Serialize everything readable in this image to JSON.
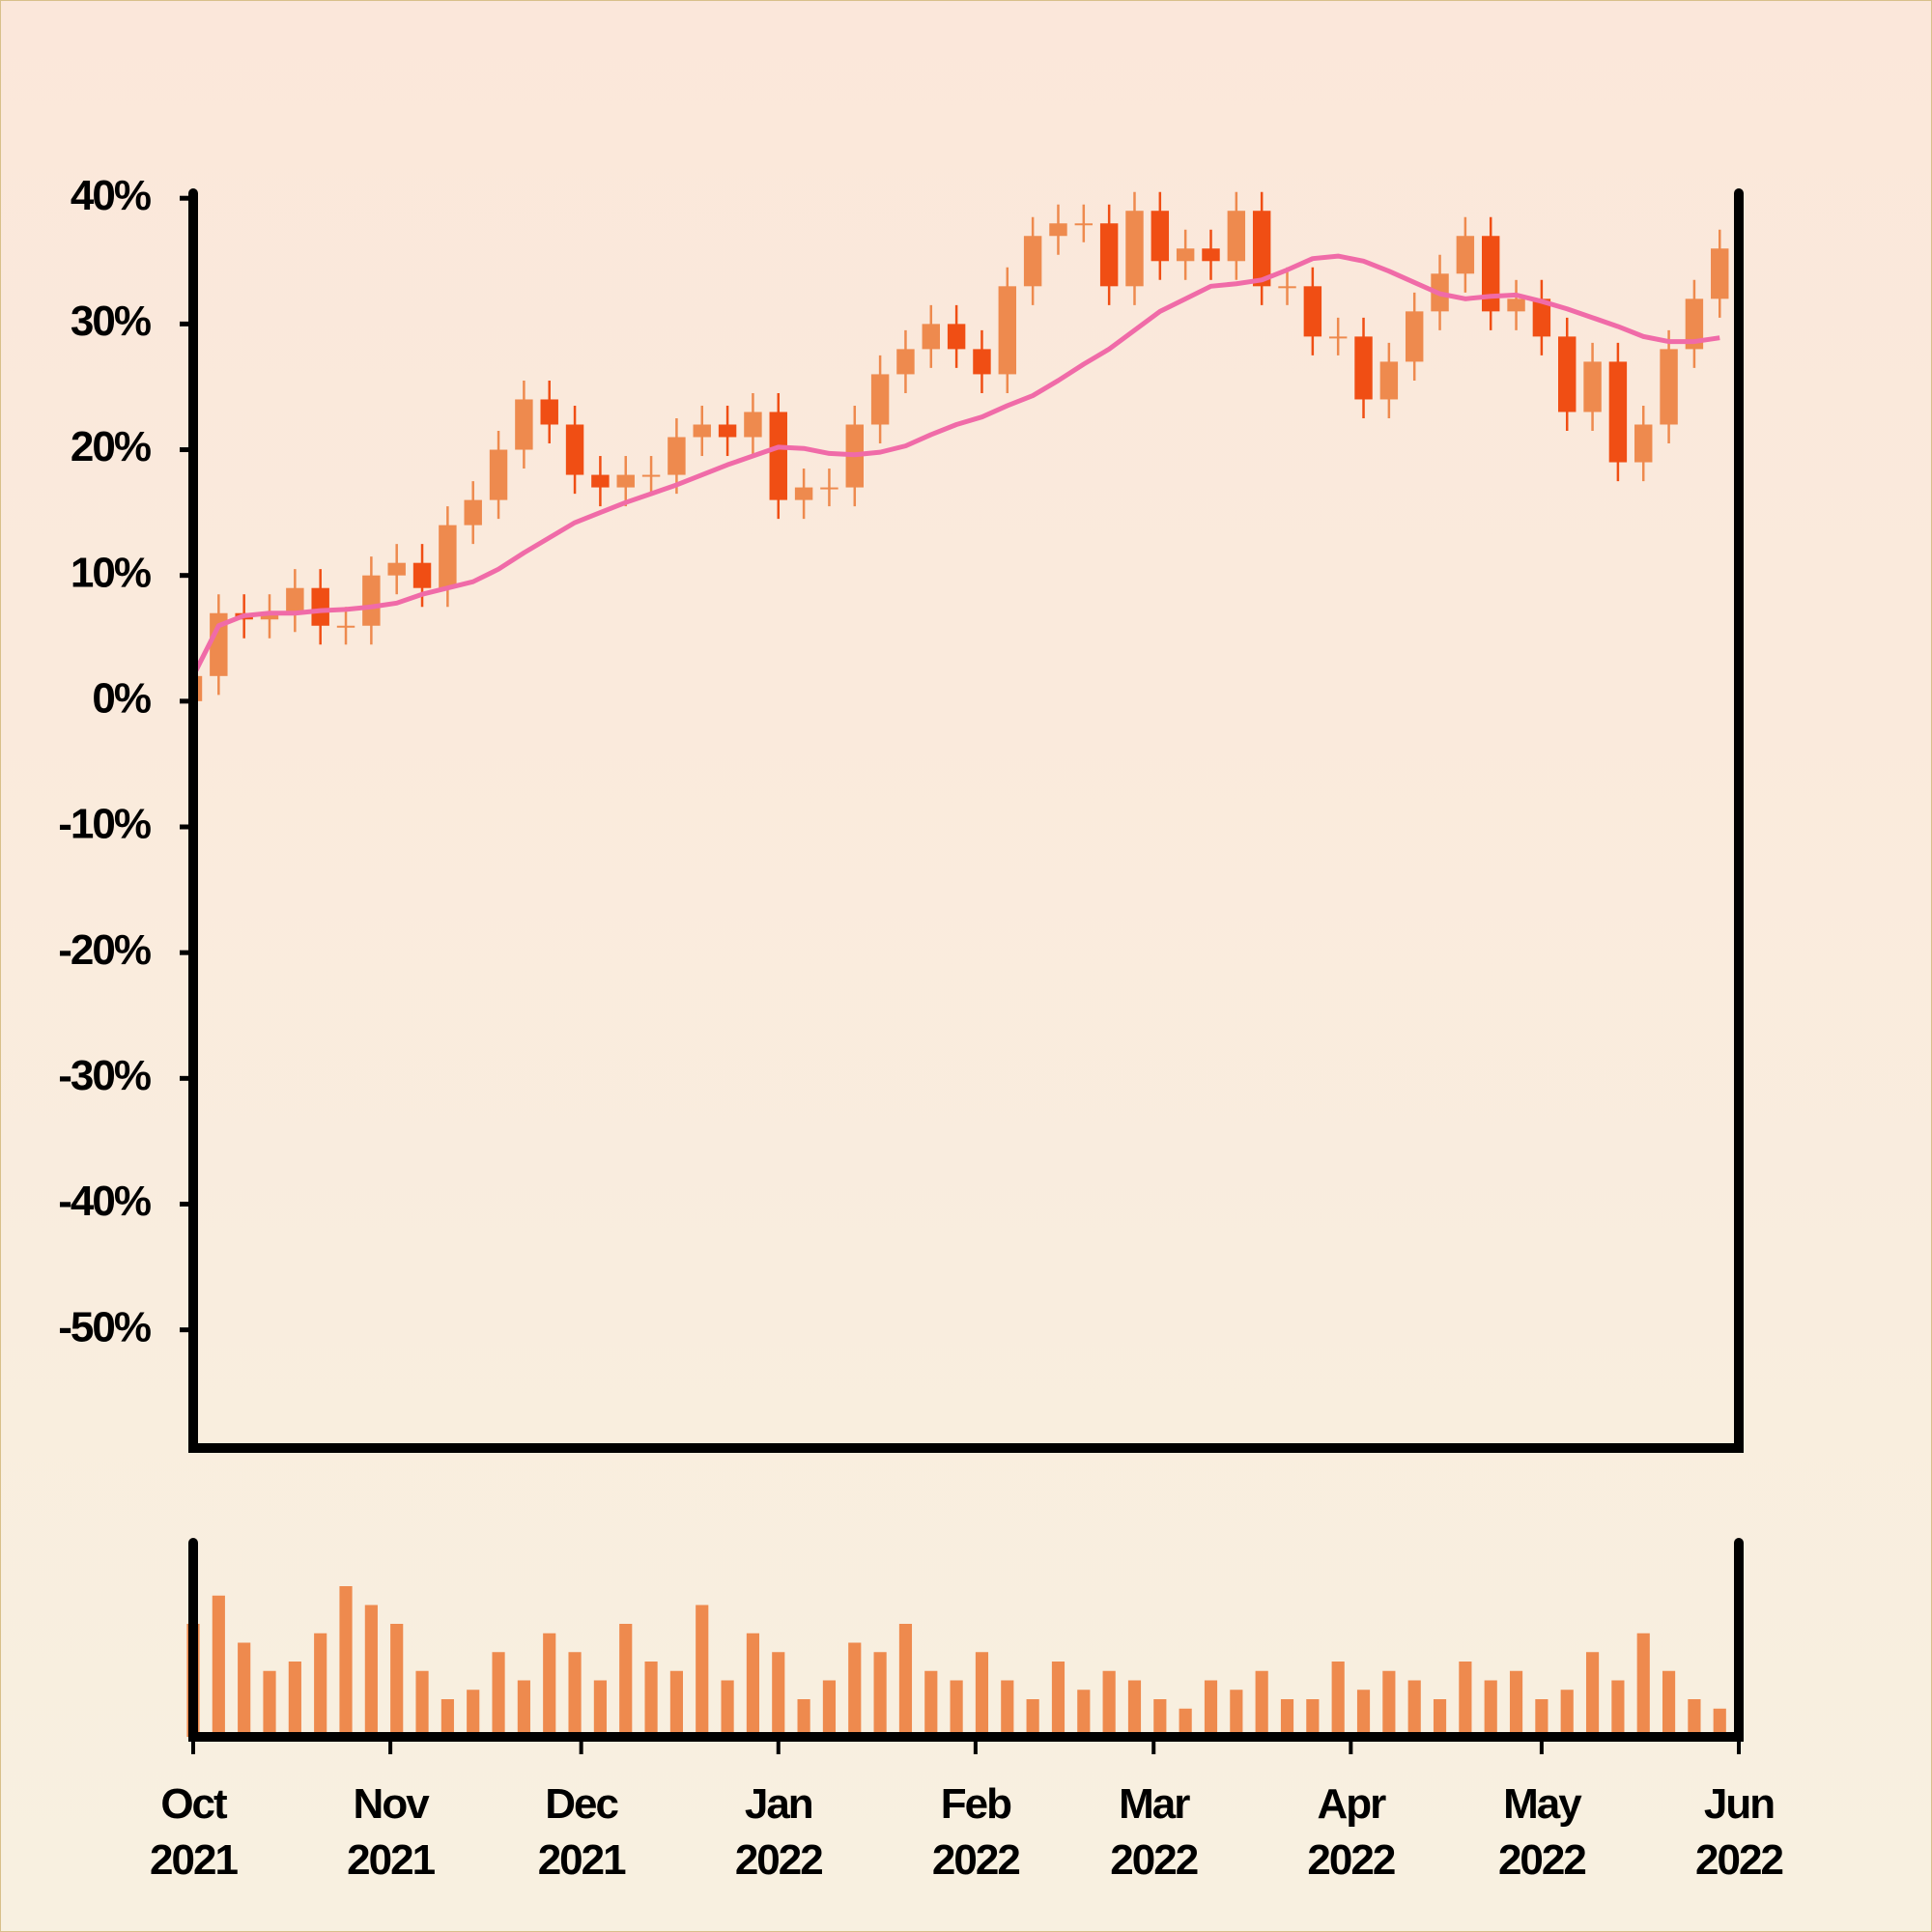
{
  "chart_data": {
    "type": "candlestick",
    "x": [
      0,
      4,
      8,
      12,
      16,
      20,
      24,
      28,
      32,
      36,
      40,
      44,
      48,
      52,
      56,
      60,
      64,
      68,
      72,
      76,
      80,
      84,
      88,
      92,
      96,
      100,
      104,
      108,
      112,
      116,
      120,
      124,
      128,
      132,
      136,
      140,
      144,
      148,
      152,
      156,
      160,
      164,
      168,
      172,
      176,
      180,
      184,
      188,
      192,
      196,
      200,
      204,
      208,
      212,
      216,
      220,
      224,
      228,
      232,
      236,
      240
    ],
    "open": [
      0,
      2,
      7,
      6.5,
      7,
      9,
      6,
      6,
      10,
      11,
      9,
      14,
      16,
      20,
      24,
      22,
      18,
      17,
      18,
      18,
      21,
      22,
      21,
      23,
      16,
      17,
      17,
      22,
      26,
      28,
      30,
      28,
      26,
      33,
      37,
      38,
      38,
      33,
      39,
      35,
      36,
      35,
      39,
      33,
      33,
      29,
      29,
      24,
      27,
      31,
      34,
      37,
      31,
      32,
      29,
      23,
      27,
      19,
      22,
      28,
      32
    ],
    "high": [
      3.5,
      8.5,
      8.5,
      8.5,
      10.5,
      10.5,
      7.5,
      11.5,
      12.5,
      12.5,
      15.5,
      17.5,
      21.5,
      25.5,
      25.5,
      23.5,
      19.5,
      19.5,
      19.5,
      22.5,
      23.5,
      23.5,
      24.5,
      24.5,
      18.5,
      18.5,
      23.5,
      27.5,
      29.5,
      31.5,
      31.5,
      29.5,
      34.5,
      38.5,
      39.5,
      39.5,
      39.5,
      40.5,
      40.5,
      37.5,
      37.5,
      40.5,
      40.5,
      34.5,
      34.5,
      30.5,
      30.5,
      28.5,
      32.5,
      35.5,
      38.5,
      38.5,
      33.5,
      33.5,
      30.5,
      28.5,
      28.5,
      23.5,
      29.5,
      33.5,
      37.5
    ],
    "low": [
      -1.5,
      0.5,
      5,
      5,
      5.5,
      4.5,
      4.5,
      4.5,
      8.5,
      7.5,
      7.5,
      12.5,
      14.5,
      18.5,
      20.5,
      16.5,
      15.5,
      15.5,
      16.5,
      16.5,
      19.5,
      19.5,
      19.5,
      14.5,
      14.5,
      15.5,
      15.5,
      20.5,
      24.5,
      26.5,
      26.5,
      24.5,
      24.5,
      31.5,
      35.5,
      36.5,
      31.5,
      31.5,
      33.5,
      33.5,
      33.5,
      33.5,
      31.5,
      31.5,
      27.5,
      27.5,
      22.5,
      22.5,
      25.5,
      29.5,
      32.5,
      29.5,
      29.5,
      27.5,
      21.5,
      21.5,
      17.5,
      17.5,
      20.5,
      26.5,
      30.5
    ],
    "close": [
      2,
      7,
      6.5,
      7,
      9,
      6,
      6,
      10,
      11,
      9,
      14,
      16,
      20,
      24,
      22,
      18,
      17,
      18,
      18,
      21,
      22,
      21,
      23,
      16,
      17,
      17,
      22,
      26,
      28,
      30,
      28,
      26,
      33,
      37,
      38,
      38,
      33,
      39,
      35,
      36,
      35,
      39,
      33,
      33,
      29,
      29,
      24,
      27,
      31,
      34,
      37,
      31,
      32,
      29,
      23,
      27,
      19,
      22,
      28,
      32,
      36
    ],
    "up_color": "#ee8a4e",
    "down_color": "#f04e14",
    "moving_average": {
      "color": "#f06ba8",
      "values": [
        2,
        6,
        6.8,
        7,
        7,
        7.2,
        7.3,
        7.5,
        7.8,
        8.5,
        9,
        9.5,
        10.5,
        11.8,
        13,
        14.2,
        15,
        15.8,
        16.5,
        17.2,
        18,
        18.8,
        19.5,
        20.2,
        20.1,
        19.7,
        19.6,
        19.8,
        20.3,
        21.2,
        22,
        22.6,
        23.5,
        24.3,
        25.5,
        26.8,
        28,
        29.5,
        31,
        32,
        33,
        33.2,
        33.5,
        34.3,
        35.2,
        35.4,
        35,
        34.2,
        33.3,
        32.4,
        32,
        32.2,
        32.3,
        31.8,
        31.2,
        30.5,
        29.8,
        29,
        28.6,
        28.6,
        28.9
      ]
    },
    "volume": {
      "color": "#ee8a4e",
      "ylim": [
        0,
        100
      ],
      "values": [
        60,
        75,
        50,
        35,
        40,
        55,
        80,
        70,
        60,
        35,
        20,
        25,
        45,
        30,
        55,
        45,
        30,
        60,
        40,
        35,
        70,
        30,
        55,
        45,
        20,
        30,
        50,
        45,
        60,
        35,
        30,
        45,
        30,
        20,
        40,
        25,
        35,
        30,
        20,
        15,
        30,
        25,
        35,
        20,
        20,
        40,
        25,
        35,
        30,
        20,
        40,
        30,
        35,
        20,
        25,
        45,
        30,
        55,
        35,
        20,
        15
      ]
    },
    "xlim": [
      0,
      243
    ],
    "xticks": [
      {
        "value": 0,
        "label": [
          "Oct",
          "2021"
        ]
      },
      {
        "value": 31,
        "label": [
          "Nov",
          "2021"
        ]
      },
      {
        "value": 61,
        "label": [
          "Dec",
          "2021"
        ]
      },
      {
        "value": 92,
        "label": [
          "Jan",
          "2022"
        ]
      },
      {
        "value": 123,
        "label": [
          "Feb",
          "2022"
        ]
      },
      {
        "value": 151,
        "label": [
          "Mar",
          "2022"
        ]
      },
      {
        "value": 182,
        "label": [
          "Apr",
          "2022"
        ]
      },
      {
        "value": 212,
        "label": [
          "May",
          "2022"
        ]
      },
      {
        "value": 243,
        "label": [
          "Jun",
          "2022"
        ]
      }
    ],
    "ylim": [
      -59.4,
      40.4
    ],
    "yticks": [
      {
        "value": 40,
        "label": "40%"
      },
      {
        "value": 30,
        "label": "30%"
      },
      {
        "value": 20,
        "label": "20%"
      },
      {
        "value": 10,
        "label": "10%"
      },
      {
        "value": 0,
        "label": "0%"
      },
      {
        "value": -10,
        "label": "-10%"
      },
      {
        "value": -20,
        "label": "-20%"
      },
      {
        "value": -30,
        "label": "-30%"
      },
      {
        "value": -40,
        "label": "-40%"
      },
      {
        "value": -50,
        "label": "-50%"
      }
    ]
  }
}
